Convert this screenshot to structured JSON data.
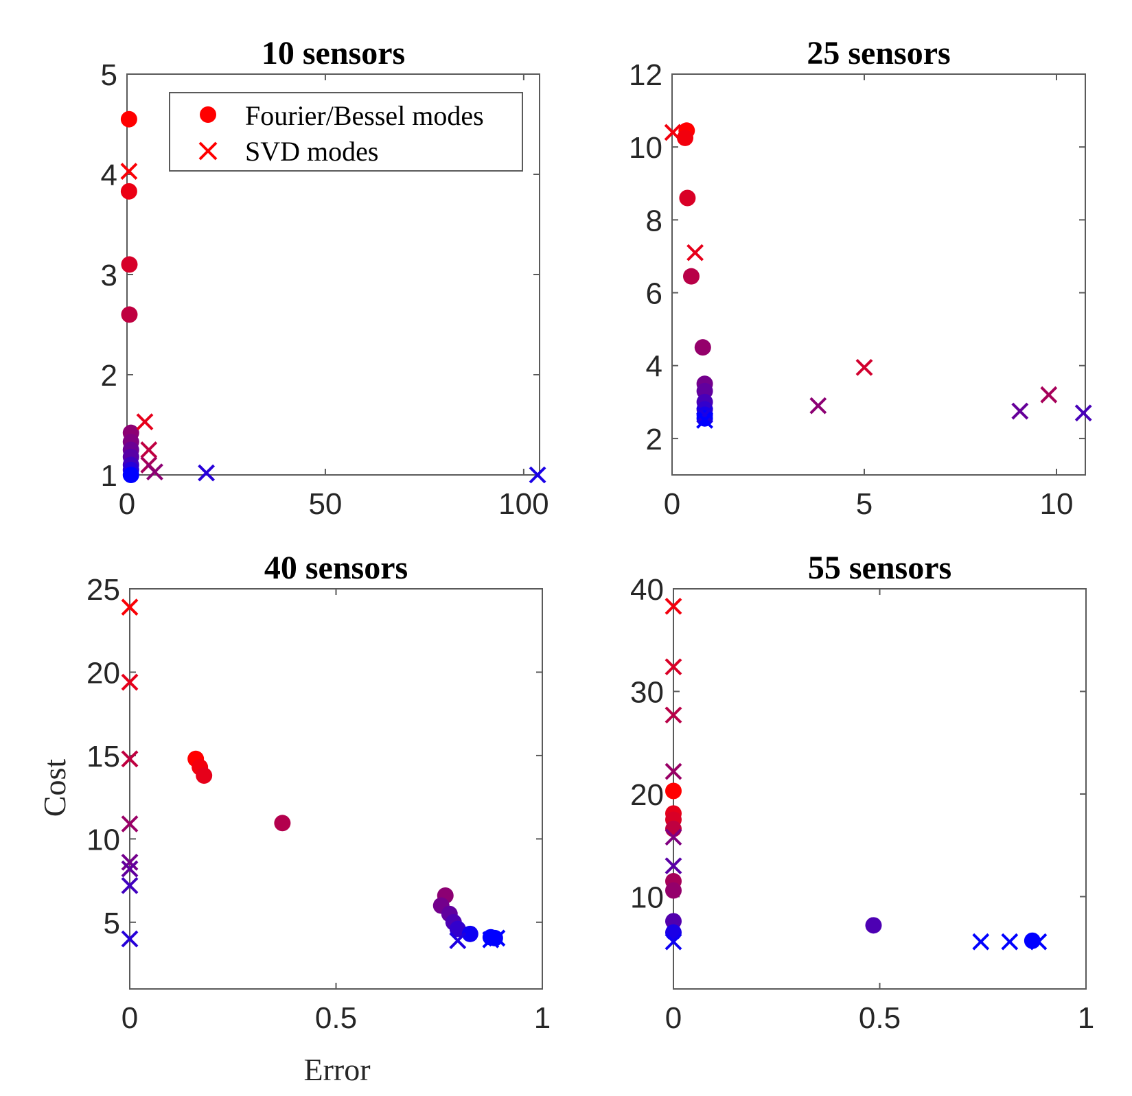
{
  "figure": {
    "xlabel": "Error",
    "ylabel": "Cost",
    "legend": {
      "placement": "top-right",
      "entries": [
        {
          "label": "Fourier/Bessel modes",
          "marker": "circle",
          "color": "#ff0000"
        },
        {
          "label": "SVD modes",
          "marker": "x",
          "color": "#ff0000"
        }
      ]
    },
    "colors": {
      "start": "#ff0000",
      "end": "#0000ff"
    }
  },
  "chart_data": [
    {
      "type": "scatter",
      "title": "10 sensors",
      "xlim": [
        0,
        104
      ],
      "ylim": [
        1,
        5
      ],
      "xticks": [
        0,
        50,
        100
      ],
      "xtick_labels": [
        "0",
        "50",
        "100"
      ],
      "yticks": [
        1,
        2,
        3,
        4,
        5
      ],
      "ytick_labels": [
        "1",
        "2",
        "3",
        "4",
        "5"
      ],
      "series": [
        {
          "name": "Fourier/Bessel modes",
          "marker": "circle",
          "points": [
            {
              "x": 0.5,
              "y": 4.55,
              "t": 0.0
            },
            {
              "x": 0.5,
              "y": 3.83,
              "t": 0.08
            },
            {
              "x": 0.6,
              "y": 3.1,
              "t": 0.16
            },
            {
              "x": 0.6,
              "y": 2.6,
              "t": 0.25
            },
            {
              "x": 1.0,
              "y": 1.42,
              "t": 0.45
            },
            {
              "x": 1.0,
              "y": 1.33,
              "t": 0.5
            },
            {
              "x": 1.0,
              "y": 1.25,
              "t": 0.58
            },
            {
              "x": 1.0,
              "y": 1.18,
              "t": 0.65
            },
            {
              "x": 1.0,
              "y": 1.1,
              "t": 0.75
            },
            {
              "x": 1.0,
              "y": 1.05,
              "t": 0.85
            },
            {
              "x": 1.0,
              "y": 1.0,
              "t": 1.0
            }
          ]
        },
        {
          "name": "SVD modes",
          "marker": "x",
          "points": [
            {
              "x": 0.5,
              "y": 4.03,
              "t": 0.02
            },
            {
              "x": 4.5,
              "y": 1.53,
              "t": 0.1
            },
            {
              "x": 5.5,
              "y": 1.25,
              "t": 0.25
            },
            {
              "x": 5.5,
              "y": 1.1,
              "t": 0.35
            },
            {
              "x": 7.0,
              "y": 1.03,
              "t": 0.45
            },
            {
              "x": 20.0,
              "y": 1.02,
              "t": 0.85
            },
            {
              "x": 103.5,
              "y": 1.0,
              "t": 0.9
            }
          ]
        }
      ]
    },
    {
      "type": "scatter",
      "title": "25 sensors",
      "xlim": [
        0,
        10.75
      ],
      "ylim": [
        1,
        12
      ],
      "xticks": [
        0,
        5,
        10
      ],
      "xtick_labels": [
        "0",
        "5",
        "10"
      ],
      "yticks": [
        2,
        4,
        6,
        8,
        10,
        12
      ],
      "ytick_labels": [
        "2",
        "4",
        "6",
        "8",
        "10",
        "12"
      ],
      "series": [
        {
          "name": "Fourier/Bessel modes",
          "marker": "circle",
          "points": [
            {
              "x": 0.38,
              "y": 10.45,
              "t": 0.0
            },
            {
              "x": 0.34,
              "y": 10.25,
              "t": 0.05
            },
            {
              "x": 0.4,
              "y": 8.6,
              "t": 0.15
            },
            {
              "x": 0.5,
              "y": 6.45,
              "t": 0.28
            },
            {
              "x": 0.8,
              "y": 4.5,
              "t": 0.42
            },
            {
              "x": 0.85,
              "y": 3.5,
              "t": 0.55
            },
            {
              "x": 0.85,
              "y": 3.3,
              "t": 0.62
            },
            {
              "x": 0.85,
              "y": 3.0,
              "t": 0.72
            },
            {
              "x": 0.85,
              "y": 2.8,
              "t": 0.8
            },
            {
              "x": 0.85,
              "y": 2.65,
              "t": 0.9
            },
            {
              "x": 0.85,
              "y": 2.55,
              "t": 1.0
            }
          ]
        },
        {
          "name": "SVD modes",
          "marker": "x",
          "points": [
            {
              "x": 0.02,
              "y": 10.4,
              "t": 0.05
            },
            {
              "x": 0.6,
              "y": 7.1,
              "t": 0.1
            },
            {
              "x": 5.0,
              "y": 3.95,
              "t": 0.18
            },
            {
              "x": 9.8,
              "y": 3.2,
              "t": 0.35
            },
            {
              "x": 3.8,
              "y": 2.9,
              "t": 0.45
            },
            {
              "x": 9.05,
              "y": 2.75,
              "t": 0.6
            },
            {
              "x": 10.7,
              "y": 2.7,
              "t": 0.72
            },
            {
              "x": 0.85,
              "y": 2.65,
              "t": 0.9
            },
            {
              "x": 0.85,
              "y": 2.5,
              "t": 1.0
            }
          ]
        }
      ]
    },
    {
      "type": "scatter",
      "title": "40 sensors",
      "xlim": [
        0,
        1
      ],
      "ylim": [
        1,
        25
      ],
      "xticks": [
        0,
        0.5,
        1
      ],
      "xtick_labels": [
        "0",
        "0.5",
        "1"
      ],
      "yticks": [
        5,
        10,
        15,
        20,
        25
      ],
      "ytick_labels": [
        "5",
        "10",
        "15",
        "20",
        "25"
      ],
      "series": [
        {
          "name": "Fourier/Bessel modes",
          "marker": "circle",
          "points": [
            {
              "x": 0.16,
              "y": 14.8,
              "t": 0.0
            },
            {
              "x": 0.17,
              "y": 14.3,
              "t": 0.05
            },
            {
              "x": 0.18,
              "y": 13.8,
              "t": 0.1
            },
            {
              "x": 0.37,
              "y": 10.95,
              "t": 0.3
            },
            {
              "x": 0.765,
              "y": 6.6,
              "t": 0.45
            },
            {
              "x": 0.755,
              "y": 6.0,
              "t": 0.55
            },
            {
              "x": 0.775,
              "y": 5.5,
              "t": 0.62
            },
            {
              "x": 0.785,
              "y": 5.0,
              "t": 0.7
            },
            {
              "x": 0.795,
              "y": 4.6,
              "t": 0.8
            },
            {
              "x": 0.825,
              "y": 4.3,
              "t": 0.95
            },
            {
              "x": 0.875,
              "y": 4.1,
              "t": 1.0
            },
            {
              "x": 0.885,
              "y": 4.05,
              "t": 1.0
            }
          ]
        },
        {
          "name": "SVD modes",
          "marker": "x",
          "points": [
            {
              "x": 0.0,
              "y": 23.9,
              "t": 0.02
            },
            {
              "x": 0.0,
              "y": 19.4,
              "t": 0.1
            },
            {
              "x": 0.0,
              "y": 14.8,
              "t": 0.25
            },
            {
              "x": 0.0,
              "y": 10.9,
              "t": 0.4
            },
            {
              "x": 0.0,
              "y": 8.6,
              "t": 0.55
            },
            {
              "x": 0.0,
              "y": 8.2,
              "t": 0.62
            },
            {
              "x": 0.0,
              "y": 7.2,
              "t": 0.75
            },
            {
              "x": 0.0,
              "y": 4.0,
              "t": 0.85
            },
            {
              "x": 0.795,
              "y": 3.9,
              "t": 0.88
            },
            {
              "x": 0.875,
              "y": 3.95,
              "t": 1.0
            },
            {
              "x": 0.89,
              "y": 4.05,
              "t": 1.0
            }
          ]
        }
      ]
    },
    {
      "type": "scatter",
      "title": "55 sensors",
      "xlim": [
        0,
        1
      ],
      "ylim": [
        1,
        40
      ],
      "xticks": [
        0,
        0.5,
        1
      ],
      "xtick_labels": [
        "0",
        "0.5",
        "1"
      ],
      "yticks": [
        10,
        20,
        30,
        40
      ],
      "ytick_labels": [
        "10",
        "20",
        "30",
        "40"
      ],
      "series": [
        {
          "name": "Fourier/Bessel modes",
          "marker": "circle",
          "points": [
            {
              "x": 0.0,
              "y": 20.3,
              "t": 0.0
            },
            {
              "x": 0.0,
              "y": 18.1,
              "t": 0.1
            },
            {
              "x": 0.0,
              "y": 17.5,
              "t": 0.15
            },
            {
              "x": 0.0,
              "y": 16.6,
              "t": 0.25
            },
            {
              "x": 0.0,
              "y": 11.5,
              "t": 0.35
            },
            {
              "x": 0.0,
              "y": 10.6,
              "t": 0.42
            },
            {
              "x": 0.0,
              "y": 7.6,
              "t": 0.68
            },
            {
              "x": 0.0,
              "y": 6.5,
              "t": 0.9
            },
            {
              "x": 0.485,
              "y": 7.2,
              "t": 0.7
            },
            {
              "x": 0.87,
              "y": 5.7,
              "t": 1.0
            }
          ]
        },
        {
          "name": "SVD modes",
          "marker": "x",
          "points": [
            {
              "x": 0.0,
              "y": 38.3,
              "t": 0.05
            },
            {
              "x": 0.0,
              "y": 32.4,
              "t": 0.15
            },
            {
              "x": 0.0,
              "y": 27.7,
              "t": 0.28
            },
            {
              "x": 0.0,
              "y": 22.2,
              "t": 0.4
            },
            {
              "x": 0.0,
              "y": 15.8,
              "t": 0.5
            },
            {
              "x": 0.0,
              "y": 13.0,
              "t": 0.65
            },
            {
              "x": 0.0,
              "y": 5.6,
              "t": 0.95
            },
            {
              "x": 0.745,
              "y": 5.6,
              "t": 1.0
            },
            {
              "x": 0.815,
              "y": 5.6,
              "t": 1.0
            },
            {
              "x": 0.885,
              "y": 5.6,
              "t": 1.0
            }
          ]
        }
      ]
    }
  ]
}
